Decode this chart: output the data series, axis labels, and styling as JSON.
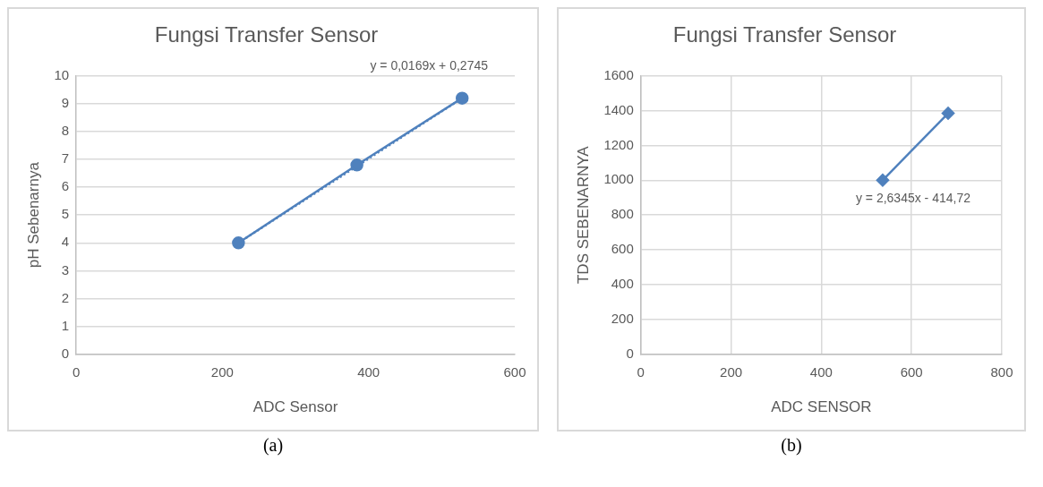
{
  "chart_data": [
    {
      "type": "line",
      "title": "Fungsi Transfer Sensor",
      "xlabel": "ADC Sensor",
      "ylabel": "pH Sebenarnya",
      "xlim": [
        0,
        600
      ],
      "xticks": [
        0,
        200,
        400,
        600
      ],
      "ylim": [
        0,
        10
      ],
      "yticks": [
        0,
        1,
        2,
        3,
        4,
        5,
        6,
        7,
        8,
        9,
        10
      ],
      "grid": "y",
      "marker": "circle",
      "series": [
        {
          "x": [
            222,
            384,
            528
          ],
          "values": [
            4,
            6.8,
            9.2
          ],
          "color": "#4f81bd",
          "line_style": "solid"
        },
        {
          "x": [
            222,
            528
          ],
          "values": [
            4,
            9.2
          ],
          "color": "#4f81bd",
          "line_style": "dotted",
          "marker": "none"
        }
      ],
      "annotations": [
        "y = 0,0169x + 0,2745",
        "(a)"
      ]
    },
    {
      "type": "line",
      "title": "Fungsi Transfer Sensor",
      "xlabel": "ADC SENSOR",
      "ylabel": "TDS SEBENARNYA",
      "xlim": [
        0,
        800
      ],
      "xticks": [
        0,
        200,
        400,
        600,
        800
      ],
      "ylim": [
        0,
        1600
      ],
      "yticks": [
        0,
        200,
        400,
        600,
        800,
        1000,
        1200,
        1400,
        1600
      ],
      "grid": true,
      "marker": "diamond",
      "series": [
        {
          "x": [
            536,
            681
          ],
          "values": [
            1000,
            1385
          ],
          "color": "#4f81bd",
          "line_style": "solid"
        }
      ],
      "annotations": [
        "y = 2,6345x - 414,72",
        "(b)"
      ]
    }
  ]
}
